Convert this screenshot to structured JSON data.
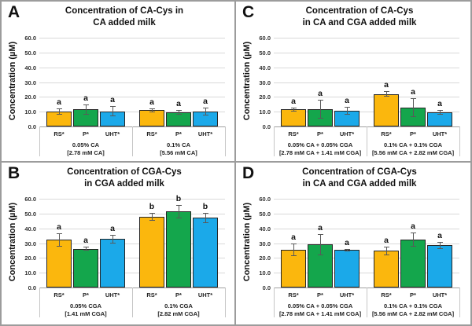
{
  "figure": {
    "kind": "2x2 bar chart figure",
    "background": "#ffffff",
    "border_color": "#9c9c9c"
  },
  "chart_data": [
    {
      "panel": "A",
      "type": "bar",
      "title_line1": "Concentration of CA-Cys in",
      "title_line2": "CA added milk",
      "ylabel": "Concentration (µM)",
      "ylim": [
        0,
        60
      ],
      "yticks": [
        "0.0",
        "10.0",
        "20.0",
        "30.0",
        "40.0",
        "50.0",
        "60.0"
      ],
      "grid": "horizontal",
      "series_labels": [
        "RS*",
        "P*",
        "UHT*"
      ],
      "series_colors": [
        "#FBB70D",
        "#14A64C",
        "#1BA9E9"
      ],
      "groups": [
        {
          "label_line1": "0.05% CA",
          "label_line2": "[2.78 mM CA]",
          "values": [
            10.0,
            11.6,
            10.2
          ],
          "errors": [
            2.0,
            3.5,
            3.5
          ],
          "sig": [
            "a",
            "a",
            "a"
          ]
        },
        {
          "label_line1": "0.1% CA",
          "label_line2": "[5.56 mM CA]",
          "values": [
            11.1,
            9.4,
            10.1
          ],
          "errors": [
            1.3,
            1.5,
            2.6
          ],
          "sig": [
            "a",
            "a",
            "a"
          ]
        }
      ]
    },
    {
      "panel": "C",
      "type": "bar",
      "title_line1": "Concentration of CA-Cys",
      "title_line2": "in CA and CGA added milk",
      "ylabel": "Concentration (µM)",
      "ylim": [
        0,
        60
      ],
      "yticks": [
        "0.0",
        "10.0",
        "20.0",
        "30.0",
        "40.0",
        "50.0",
        "60.0"
      ],
      "grid": "horizontal",
      "series_labels": [
        "RS*",
        "P*",
        "UHT*"
      ],
      "series_colors": [
        "#FBB70D",
        "#14A64C",
        "#1BA9E9"
      ],
      "groups": [
        {
          "label_line1": "0.05% CA + 0.05% CGA",
          "label_line2": "[2.78 mM CA + 1.41 mM CGA]",
          "values": [
            11.5,
            11.5,
            10.5
          ],
          "errors": [
            1.2,
            6.3,
            2.8
          ],
          "sig": [
            "a",
            "a",
            "a"
          ]
        },
        {
          "label_line1": "0.1% CA + 0.1% CGA",
          "label_line2": "[5.56 mM CA + 2.82 mM CGA]",
          "values": [
            22.0,
            12.8,
            9.7
          ],
          "errors": [
            2.0,
            6.2,
            1.6
          ],
          "sig": [
            "a",
            "a",
            "a"
          ]
        }
      ]
    },
    {
      "panel": "B",
      "type": "bar",
      "title_line1": "Concentration of CGA-Cys",
      "title_line2": "in CGA added milk",
      "ylabel": "Concentration (µM)",
      "ylim": [
        0,
        60
      ],
      "yticks": [
        "0.0",
        "10.0",
        "20.0",
        "30.0",
        "40.0",
        "50.0",
        "60.0"
      ],
      "grid": "horizontal",
      "series_labels": [
        "RS*",
        "P*",
        "UHT*"
      ],
      "series_colors": [
        "#FBB70D",
        "#14A64C",
        "#1BA9E9"
      ],
      "groups": [
        {
          "label_line1": "0.05% CGA",
          "label_line2": "[1.41 mM CGA]",
          "values": [
            32.3,
            26.2,
            32.8
          ],
          "errors": [
            4.6,
            1.5,
            3.0
          ],
          "sig": [
            "a",
            "a",
            "a"
          ]
        },
        {
          "label_line1": "0.1% CGA",
          "label_line2": "[2.82 mM CGA]",
          "values": [
            47.7,
            51.4,
            47.1
          ],
          "errors": [
            2.7,
            4.5,
            3.3
          ],
          "sig": [
            "b",
            "b",
            "b"
          ]
        }
      ]
    },
    {
      "panel": "D",
      "type": "bar",
      "title_line1": "Concentration of CGA-Cys",
      "title_line2": "in CA and CGA added milk",
      "ylabel": "Concentration (µM)",
      "ylim": [
        0,
        60
      ],
      "yticks": [
        "0.0",
        "10.0",
        "20.0",
        "30.0",
        "40.0",
        "50.0",
        "60.0"
      ],
      "grid": "horizontal",
      "series_labels": [
        "RS*",
        "P*",
        "UHT*"
      ],
      "series_colors": [
        "#FBB70D",
        "#14A64C",
        "#1BA9E9"
      ],
      "groups": [
        {
          "label_line1": "0.05% CA + 0.05% CGA",
          "label_line2": "[2.78 mM CA + 1.41 mM CGA]",
          "values": [
            25.5,
            29.0,
            25.3
          ],
          "errors": [
            4.2,
            7.3,
            0.8
          ],
          "sig": [
            "a",
            "a",
            "a"
          ]
        },
        {
          "label_line1": "0.1% CA + 0.1% CGA",
          "label_line2": "[5.56 mM CA + 2.82 mM CGA]",
          "values": [
            24.8,
            32.5,
            28.5
          ],
          "errors": [
            2.8,
            4.8,
            2.5
          ],
          "sig": [
            "a",
            "a",
            "a"
          ]
        }
      ]
    }
  ]
}
